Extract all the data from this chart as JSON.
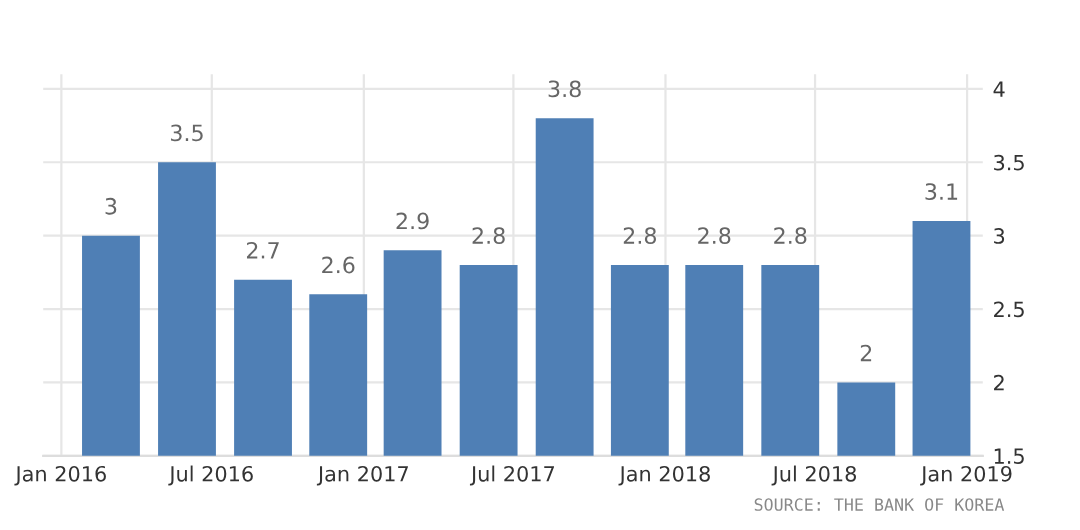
{
  "chart_data": {
    "type": "bar",
    "x": [
      "2016-03-01",
      "2016-06-01",
      "2016-09-01",
      "2016-12-01",
      "2017-03-01",
      "2017-06-01",
      "2017-09-01",
      "2017-12-01",
      "2018-03-01",
      "2018-06-01",
      "2018-09-01",
      "2018-12-01"
    ],
    "values": [
      3,
      3.5,
      2.7,
      2.6,
      2.9,
      2.8,
      3.8,
      2.8,
      2.8,
      2.8,
      2,
      3.1
    ],
    "color": "#4f7fb5",
    "data_labels": true,
    "xlim": [
      "2015-12-10",
      "2019-01-20"
    ],
    "xticks": [
      {
        "value": "2016-01-01",
        "label": "Jan 2016"
      },
      {
        "value": "2016-07-01",
        "label": "Jul 2016"
      },
      {
        "value": "2017-01-01",
        "label": "Jan 2017"
      },
      {
        "value": "2017-07-01",
        "label": "Jul 2017"
      },
      {
        "value": "2018-01-01",
        "label": "Jan 2018"
      },
      {
        "value": "2018-07-01",
        "label": "Jul 2018"
      },
      {
        "value": "2019-01-01",
        "label": "Jan 2019"
      }
    ],
    "ylim": [
      1.5,
      4.1
    ],
    "yticks": [
      1.5,
      2,
      2.5,
      3,
      3.5,
      4
    ],
    "grid": true,
    "annotations": [
      "SOURCE: THE BANK OF KOREA"
    ]
  }
}
